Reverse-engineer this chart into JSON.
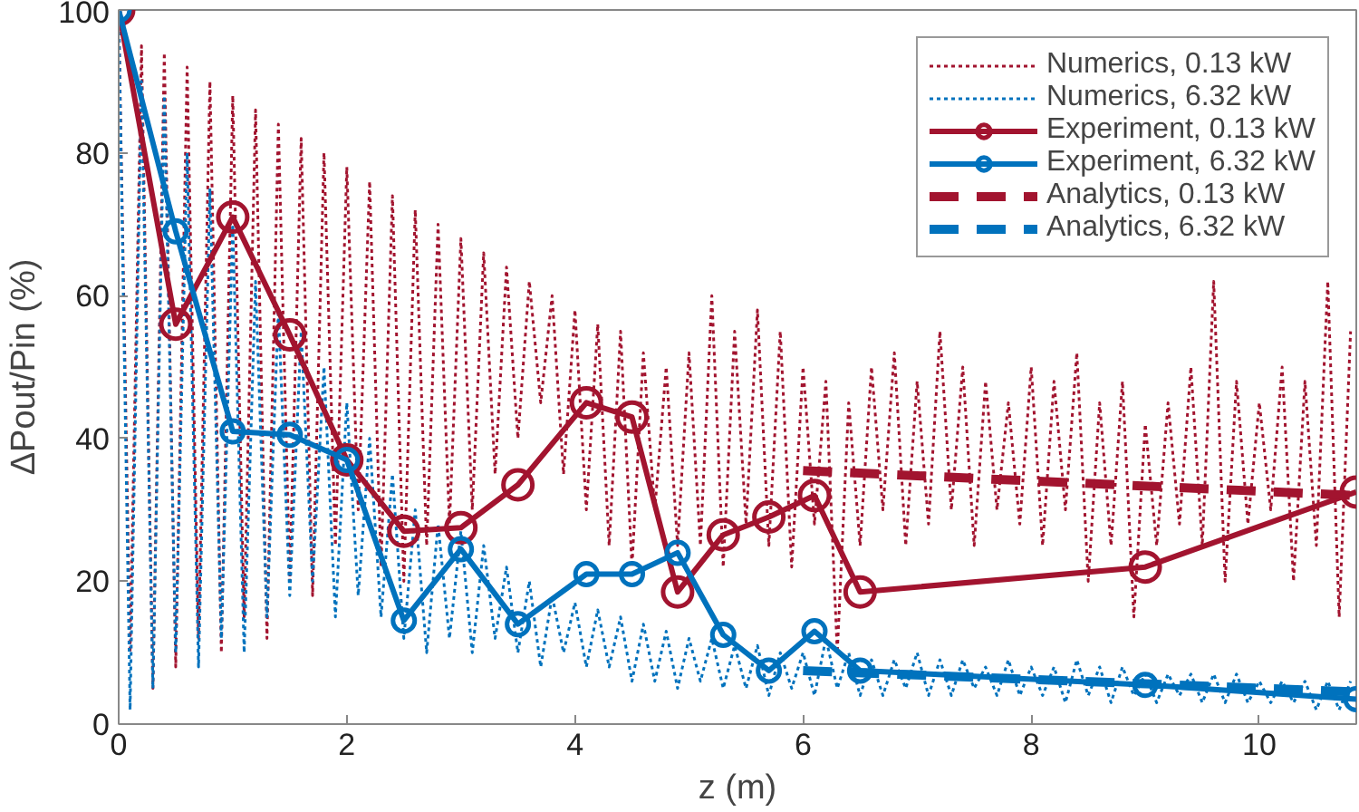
{
  "chart_data": {
    "type": "line",
    "xlabel": "z (m)",
    "ylabel": "ΔPout/Pin (%)",
    "xlim": [
      0,
      10.85
    ],
    "ylim": [
      0,
      100
    ],
    "xticks": [
      0,
      2,
      4,
      6,
      8,
      10
    ],
    "yticks": [
      0,
      20,
      40,
      60,
      80,
      100
    ],
    "grid": false,
    "legend": "top right",
    "series": [
      {
        "name": "Numerics, 0.13 kW",
        "color": "#a2142f",
        "line_style": "dotted",
        "marker": "none",
        "x": [
          0,
          0.1,
          0.2,
          0.3,
          0.4,
          0.5,
          0.6,
          0.7,
          0.8,
          0.9,
          1.0,
          1.1,
          1.2,
          1.3,
          1.4,
          1.5,
          1.6,
          1.7,
          1.8,
          1.9,
          2.0,
          2.1,
          2.2,
          2.3,
          2.4,
          2.5,
          2.6,
          2.7,
          2.8,
          2.9,
          3.0,
          3.1,
          3.2,
          3.3,
          3.4,
          3.5,
          3.6,
          3.7,
          3.8,
          3.9,
          4.0,
          4.1,
          4.2,
          4.3,
          4.4,
          4.5,
          4.6,
          4.7,
          4.8,
          4.9,
          5.0,
          5.1,
          5.2,
          5.3,
          5.4,
          5.5,
          5.6,
          5.7,
          5.8,
          5.9,
          6.0,
          6.1,
          6.2,
          6.3,
          6.4,
          6.5,
          6.6,
          6.7,
          6.8,
          6.9,
          7.0,
          7.1,
          7.2,
          7.3,
          7.4,
          7.5,
          7.6,
          7.7,
          7.8,
          7.9,
          8.0,
          8.1,
          8.2,
          8.3,
          8.4,
          8.5,
          8.6,
          8.7,
          8.8,
          8.9,
          9.0,
          9.1,
          9.2,
          9.3,
          9.4,
          9.5,
          9.6,
          9.7,
          9.8,
          9.9,
          10.0,
          10.1,
          10.2,
          10.3,
          10.4,
          10.5,
          10.6,
          10.7,
          10.8
        ],
        "values": [
          100,
          10,
          95,
          5,
          94,
          8,
          92,
          12,
          90,
          10,
          88,
          15,
          86,
          12,
          84,
          20,
          82,
          18,
          80,
          25,
          78,
          30,
          76,
          22,
          74,
          20,
          72,
          25,
          70,
          28,
          68,
          30,
          66,
          35,
          64,
          40,
          62,
          45,
          60,
          35,
          58,
          30,
          56,
          25,
          55,
          22,
          52,
          30,
          50,
          25,
          52,
          25,
          60,
          22,
          55,
          28,
          58,
          25,
          55,
          22,
          50,
          28,
          48,
          10,
          45,
          25,
          50,
          30,
          52,
          25,
          48,
          28,
          55,
          30,
          50,
          25,
          48,
          30,
          45,
          28,
          50,
          25,
          48,
          30,
          52,
          20,
          45,
          25,
          48,
          15,
          42,
          25,
          45,
          28,
          50,
          25,
          62,
          20,
          48,
          28,
          45,
          30,
          50,
          20,
          48,
          25,
          62,
          15,
          55
        ]
      },
      {
        "name": "Numerics, 6.32 kW",
        "color": "#0072bd",
        "line_style": "dotted",
        "marker": "none",
        "x": [
          0,
          0.1,
          0.2,
          0.3,
          0.4,
          0.5,
          0.6,
          0.7,
          0.8,
          0.9,
          1.0,
          1.1,
          1.2,
          1.3,
          1.4,
          1.5,
          1.6,
          1.7,
          1.8,
          1.9,
          2.0,
          2.1,
          2.2,
          2.3,
          2.4,
          2.5,
          2.6,
          2.7,
          2.8,
          2.9,
          3.0,
          3.1,
          3.2,
          3.3,
          3.4,
          3.5,
          3.6,
          3.7,
          3.8,
          3.9,
          4.0,
          4.1,
          4.2,
          4.3,
          4.4,
          4.5,
          4.6,
          4.7,
          4.8,
          4.9,
          5.0,
          5.1,
          5.2,
          5.3,
          5.4,
          5.5,
          5.6,
          5.7,
          5.8,
          5.9,
          6.0,
          6.1,
          6.2,
          6.3,
          6.4,
          6.5,
          6.6,
          6.7,
          6.8,
          6.9,
          7.0,
          7.1,
          7.2,
          7.3,
          7.4,
          7.5,
          7.6,
          7.7,
          7.8,
          7.9,
          8.0,
          8.1,
          8.2,
          8.3,
          8.4,
          8.5,
          8.6,
          8.7,
          8.8,
          8.9,
          9.0,
          9.1,
          9.2,
          9.3,
          9.4,
          9.5,
          9.6,
          9.7,
          9.8,
          9.9,
          10.0,
          10.1,
          10.2,
          10.3,
          10.4,
          10.5,
          10.6,
          10.7,
          10.8
        ],
        "values": [
          100,
          2,
          90,
          5,
          88,
          10,
          80,
          8,
          75,
          12,
          70,
          10,
          62,
          15,
          58,
          18,
          55,
          20,
          50,
          15,
          45,
          18,
          40,
          15,
          35,
          12,
          30,
          10,
          28,
          12,
          27,
          10,
          25,
          12,
          22,
          10,
          20,
          8,
          18,
          10,
          17,
          8,
          16,
          8,
          15,
          6,
          14,
          6,
          13,
          5,
          12,
          6,
          12,
          5,
          11,
          5,
          11,
          4,
          10,
          5,
          10,
          4,
          12,
          5,
          10,
          4,
          9,
          4,
          9,
          5,
          10,
          4,
          9,
          4,
          9,
          5,
          8,
          4,
          9,
          4,
          8,
          4,
          8,
          3,
          9,
          4,
          8,
          3,
          8,
          4,
          7,
          3,
          7,
          4,
          7,
          3,
          7,
          3,
          7,
          3,
          6,
          3,
          6,
          3,
          6,
          2,
          6,
          2,
          6
        ]
      },
      {
        "name": "Experiment, 0.13 kW",
        "color": "#a2142f",
        "line_style": "solid",
        "marker": "circle",
        "x": [
          0,
          0.5,
          1,
          1.5,
          2,
          2.5,
          3,
          3.5,
          4.1,
          4.5,
          4.9,
          5.3,
          5.7,
          6.1,
          6.5,
          9,
          10.85
        ],
        "values": [
          100,
          56,
          71,
          54.5,
          37,
          27,
          27.5,
          33.5,
          45,
          43,
          18.5,
          26.5,
          29,
          32,
          18.5,
          22,
          32.5
        ]
      },
      {
        "name": "Experiment, 6.32 kW",
        "color": "#0072bd",
        "line_style": "solid",
        "marker": "circle",
        "x": [
          0,
          0.5,
          1,
          1.5,
          2,
          2.5,
          3,
          3.5,
          4.1,
          4.5,
          4.9,
          5.3,
          5.7,
          6.1,
          6.5,
          9,
          10.85
        ],
        "values": [
          100,
          69,
          41,
          40.5,
          37,
          14.5,
          24.5,
          14,
          21,
          21,
          24,
          12.5,
          7.5,
          13,
          7.5,
          5.5,
          3.5
        ]
      },
      {
        "name": "Analytics, 0.13 kW",
        "color": "#a2142f",
        "line_style": "dashed",
        "marker": "none",
        "x": [
          6,
          10.85
        ],
        "values": [
          35.5,
          32
        ]
      },
      {
        "name": "Analytics, 6.32 kW",
        "color": "#0072bd",
        "line_style": "dashed",
        "marker": "none",
        "x": [
          6,
          10.85
        ],
        "values": [
          7.5,
          4.5
        ]
      }
    ]
  }
}
